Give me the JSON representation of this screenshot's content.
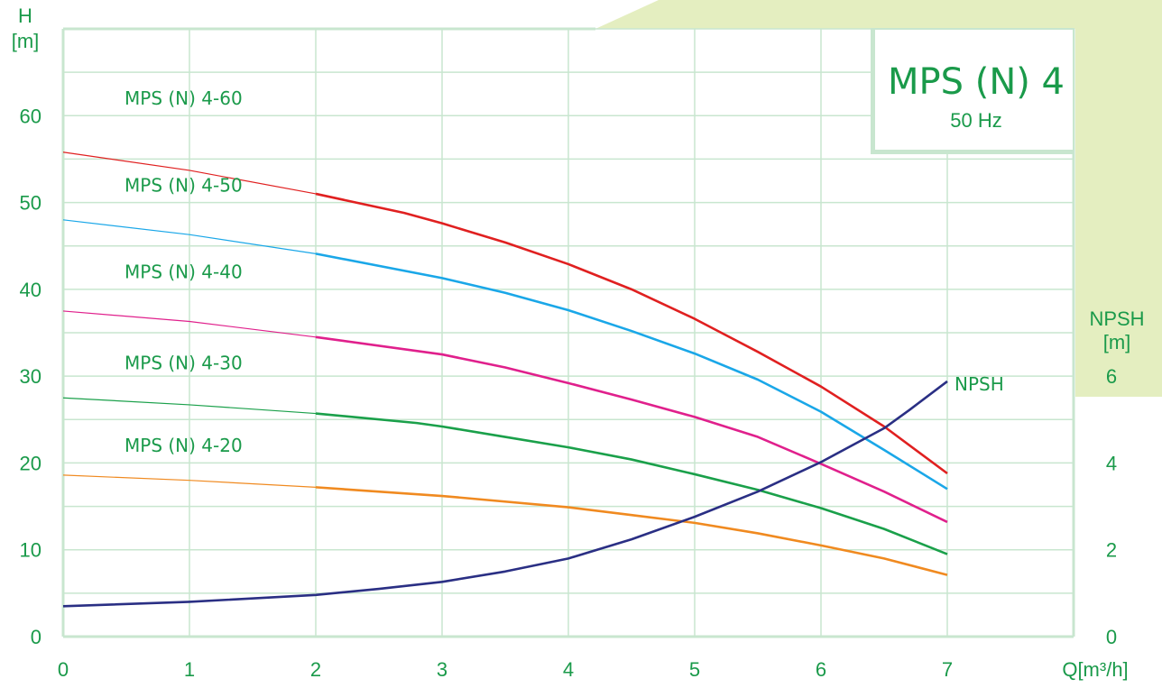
{
  "chart_data": {
    "type": "line",
    "title": "MPS (N) 4",
    "subtitle": "50 Hz",
    "ylabel": "H",
    "yunit": "[m]",
    "y2label": "NPSH",
    "y2unit": "[m]",
    "xlabel": "Q[m³/h]",
    "xlim": [
      0,
      8
    ],
    "ylim": [
      0,
      70
    ],
    "y2lim": [
      0,
      14
    ],
    "xticks": [
      "0",
      "1",
      "2",
      "3",
      "4",
      "5",
      "6",
      "7"
    ],
    "yticks": [
      "0",
      "10",
      "20",
      "30",
      "40",
      "50",
      "60"
    ],
    "y2ticks": [
      "0",
      "2",
      "4",
      "6"
    ],
    "grid": true,
    "series": [
      {
        "name": "MPS (N) 4-60",
        "color": "#e02020",
        "x": [
          0,
          1,
          2,
          2.7,
          3,
          3.5,
          4,
          4.5,
          5,
          5.5,
          6,
          6.5,
          7
        ],
        "y": [
          55.8,
          53.7,
          51.0,
          48.8,
          47.6,
          45.4,
          42.9,
          40.0,
          36.6,
          32.8,
          28.8,
          24.2,
          18.8
        ]
      },
      {
        "name": "MPS (N) 4-50",
        "color": "#1aa7e8",
        "x": [
          0,
          1,
          2,
          3,
          3.5,
          4,
          4.5,
          5,
          5.5,
          6,
          6.5,
          7
        ],
        "y": [
          48.0,
          46.3,
          44.1,
          41.3,
          39.6,
          37.6,
          35.2,
          32.6,
          29.6,
          25.9,
          21.5,
          17.0
        ]
      },
      {
        "name": "MPS (N) 4-40",
        "color": "#e0208c",
        "x": [
          0,
          1,
          2,
          3,
          3.5,
          4,
          4.5,
          5,
          5.5,
          6,
          6.5,
          7
        ],
        "y": [
          37.5,
          36.3,
          34.5,
          32.5,
          31.0,
          29.2,
          27.3,
          25.3,
          23.0,
          19.9,
          16.7,
          13.2
        ]
      },
      {
        "name": "MPS (N) 4-30",
        "color": "#1aa04a",
        "x": [
          0,
          1,
          2,
          2.8,
          3,
          3.5,
          4,
          4.5,
          5,
          5.5,
          6,
          6.5,
          7
        ],
        "y": [
          27.5,
          26.7,
          25.7,
          24.6,
          24.2,
          23.0,
          21.8,
          20.4,
          18.7,
          16.9,
          14.8,
          12.4,
          9.5
        ]
      },
      {
        "name": "MPS (N) 4-20",
        "color": "#f08a20",
        "x": [
          0,
          1,
          2,
          3,
          4,
          4.5,
          5,
          5.5,
          6,
          6.5,
          7
        ],
        "y": [
          18.6,
          18.0,
          17.2,
          16.2,
          14.9,
          14.0,
          13.1,
          11.9,
          10.5,
          9.0,
          7.1
        ]
      },
      {
        "name": "NPSH",
        "axis": "right",
        "color": "#2a2f84",
        "x": [
          0,
          1,
          2,
          2.5,
          3,
          3.5,
          4,
          4.5,
          5,
          5.5,
          6,
          6.5,
          6.7,
          7
        ],
        "y": [
          0.7,
          0.8,
          0.96,
          1.1,
          1.26,
          1.5,
          1.8,
          2.24,
          2.76,
          3.34,
          4.02,
          4.8,
          5.22,
          5.88
        ]
      }
    ]
  },
  "colors": {
    "grid": "#c8e6cf",
    "text": "#1a9a4a",
    "background_accent": "#e4eec0"
  }
}
